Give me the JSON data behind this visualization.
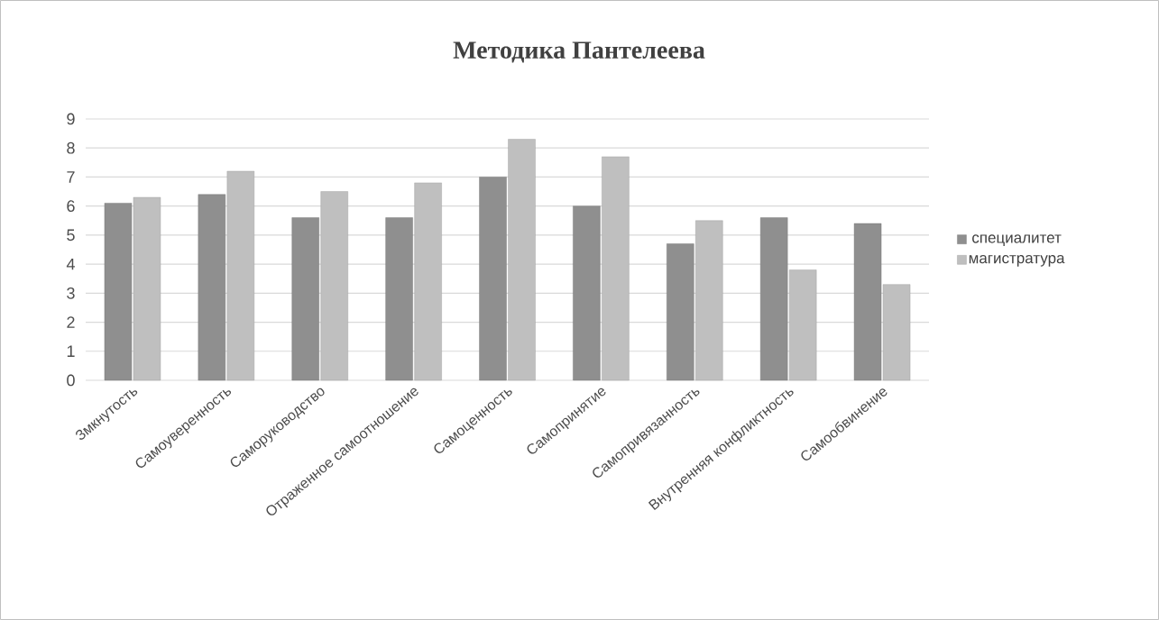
{
  "chart_data": {
    "type": "bar",
    "title": "Методика Пантелеева",
    "categories": [
      "Змкнутость",
      "Самоуверенность",
      "Саморуководство",
      "Отраженное самоотношение",
      "Самоценность",
      "Самопринятие",
      "Самопривязанность",
      "Внутренняя конфликтность",
      "Самообвинение"
    ],
    "series": [
      {
        "name": "специалитет",
        "color": "#8f8f8f",
        "values": [
          6.1,
          6.4,
          5.6,
          5.6,
          7.0,
          6.0,
          4.7,
          5.6,
          5.4
        ]
      },
      {
        "name": "магистратура",
        "color": "#bfbfbf",
        "values": [
          6.3,
          7.2,
          6.5,
          6.8,
          8.3,
          7.7,
          5.5,
          3.8,
          3.3
        ]
      }
    ],
    "ylim": [
      0,
      9
    ],
    "yticks": [
      0,
      1,
      2,
      3,
      4,
      5,
      6,
      7,
      8,
      9
    ],
    "grid": "y",
    "legend": "right"
  }
}
